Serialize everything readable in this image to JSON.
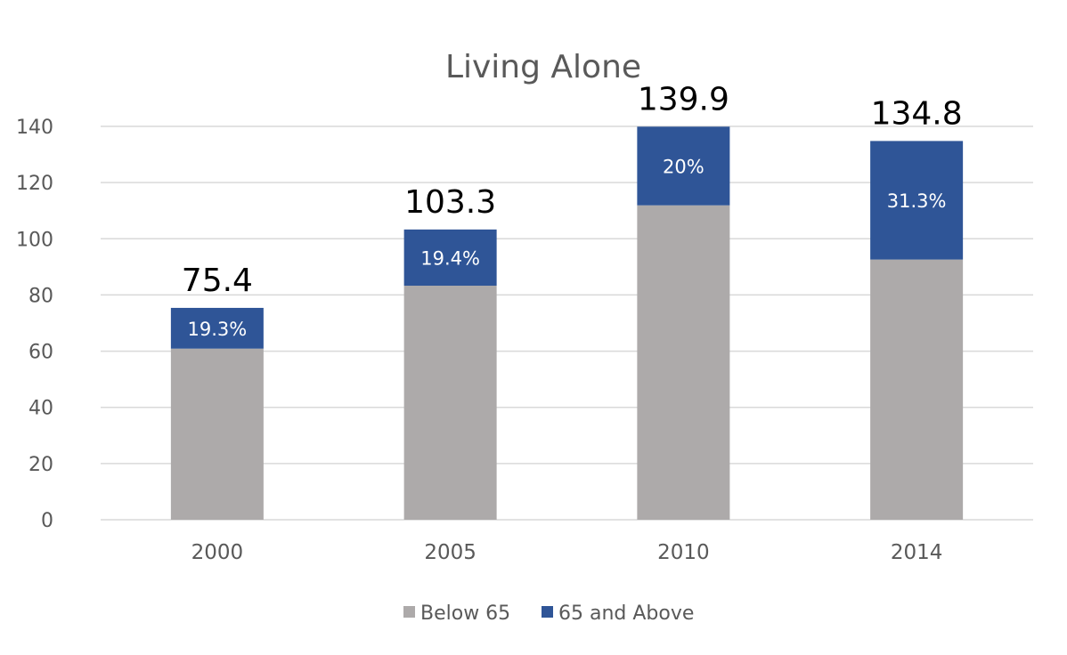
{
  "chart_data": {
    "type": "bar",
    "stacked": true,
    "title": "Living Alone",
    "xlabel": "",
    "ylabel": "",
    "categories": [
      "2000",
      "2005",
      "2010",
      "2014"
    ],
    "series": [
      {
        "name": "Below 65",
        "values": [
          60.9,
          83.3,
          111.9,
          92.6
        ],
        "color": "#ADAAAA"
      },
      {
        "name": "65 and Above",
        "values": [
          14.5,
          20.0,
          28.0,
          42.2
        ],
        "color": "#2F5597"
      }
    ],
    "segment_labels": [
      "19.3%",
      "19.4%",
      "20%",
      "31.3%"
    ],
    "totals": [
      75.4,
      103.3,
      139.9,
      134.8
    ],
    "total_labels": [
      "75.4",
      "103.3",
      "139.9",
      "134.8"
    ],
    "ylim": [
      0,
      140
    ],
    "yticks": [
      0,
      20,
      40,
      60,
      80,
      100,
      120,
      140
    ],
    "grid": true,
    "legend_position": "bottom",
    "colors": {
      "grid": "#D9D9D9",
      "axis_text": "#595959",
      "total_text": "#000000",
      "segment_text": "#FFFFFF"
    }
  }
}
